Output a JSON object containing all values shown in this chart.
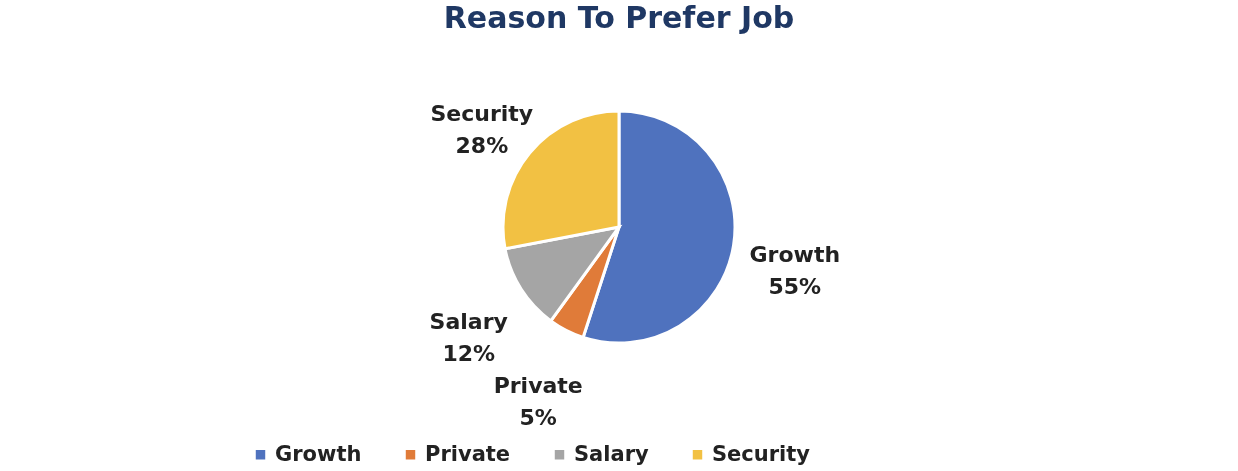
{
  "chart_data": {
    "type": "pie",
    "title": "Reason To Prefer Job",
    "categories": [
      "Growth",
      "Private",
      "Salary",
      "Security"
    ],
    "values": [
      55,
      5,
      12,
      28
    ],
    "value_labels": [
      "55%",
      "5%",
      "12%",
      "28%"
    ],
    "colors": [
      "#4f72be",
      "#e07b39",
      "#a5a5a5",
      "#f2c143"
    ],
    "legend": "bottom"
  }
}
